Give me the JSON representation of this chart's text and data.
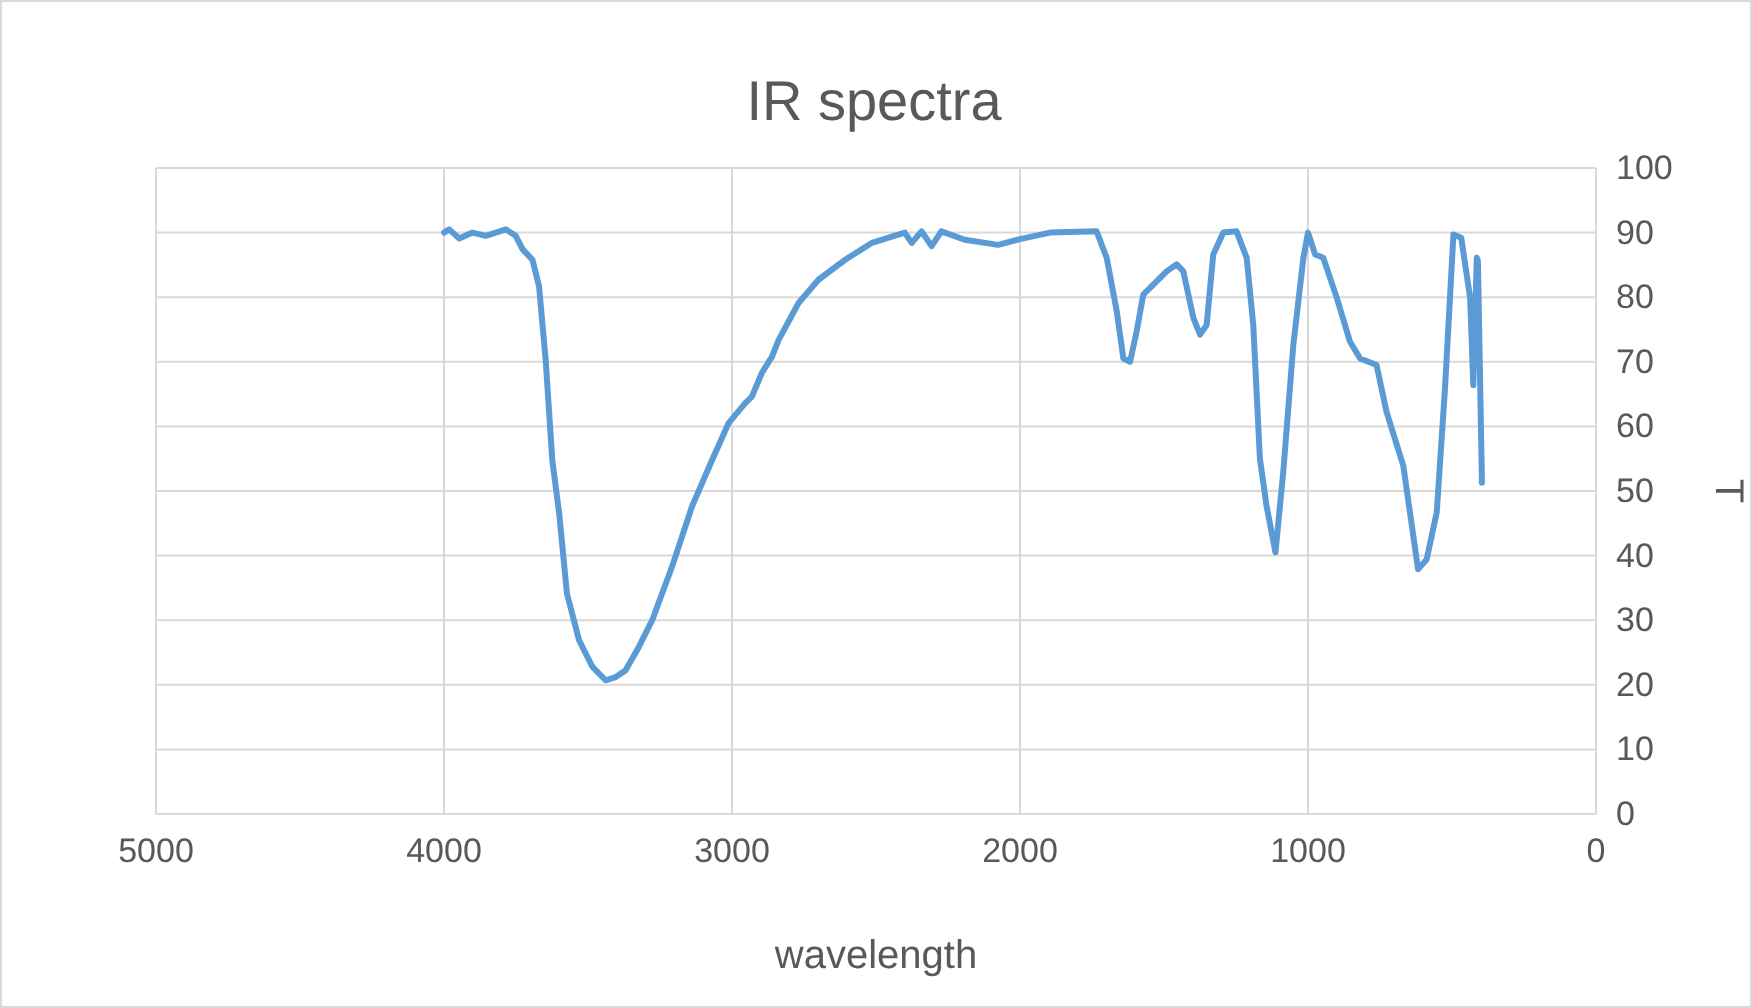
{
  "chart_data": {
    "type": "line",
    "title": "IR spectra",
    "xlabel": "wavelength",
    "ylabel": "T",
    "xlim": [
      5000,
      0
    ],
    "xticks": [
      5000,
      4000,
      3000,
      2000,
      1000,
      0
    ],
    "ylim": [
      0,
      100
    ],
    "yticks": [
      0,
      10,
      20,
      30,
      40,
      50,
      60,
      70,
      80,
      90,
      100
    ],
    "grid": true,
    "series": [
      {
        "color": "#5b9bd5",
        "x": [
          4000,
          3982,
          3947,
          3901,
          3855,
          3785,
          3751,
          3727,
          3693,
          3670,
          3647,
          3624,
          3600,
          3573,
          3531,
          3485,
          3439,
          3404,
          3370,
          3323,
          3277,
          3208,
          3139,
          3069,
          3012,
          2954,
          2931,
          2896,
          2861,
          2838,
          2769,
          2700,
          2607,
          2515,
          2400,
          2376,
          2342,
          2307,
          2273,
          2192,
          2076,
          2000,
          1896,
          1734,
          1699,
          1664,
          1641,
          1618,
          1595,
          1572,
          1525,
          1491,
          1456,
          1433,
          1398,
          1375,
          1352,
          1329,
          1294,
          1248,
          1213,
          1190,
          1167,
          1144,
          1113,
          1086,
          1051,
          1016,
          1000,
          975,
          947,
          900,
          854,
          819,
          762,
          727,
          669,
          618,
          588,
          553,
          525,
          495,
          468,
          437,
          426,
          414,
          410,
          396
        ],
        "values": [
          90,
          90.5,
          89.1,
          90,
          89.5,
          90.5,
          89.5,
          87.4,
          85.8,
          81.7,
          70.3,
          54.8,
          46.5,
          34.1,
          26.9,
          22.8,
          20.7,
          21.2,
          22.2,
          25.9,
          30,
          38.3,
          47.6,
          54.8,
          60.5,
          63.6,
          64.6,
          68.3,
          70.8,
          73.4,
          79.1,
          82.7,
          85.8,
          88.4,
          90,
          88.4,
          90.2,
          87.9,
          90.2,
          88.9,
          88.1,
          89,
          90,
          90.2,
          86.1,
          77.8,
          70.5,
          70,
          74.7,
          80.4,
          82.5,
          84,
          85.1,
          84,
          76.8,
          74.2,
          75.7,
          86.6,
          90,
          90.2,
          86.1,
          75.7,
          55,
          47.7,
          40.5,
          52.9,
          72.6,
          86.1,
          90,
          86.6,
          86.1,
          79.9,
          73.1,
          70.5,
          69.5,
          62.2,
          53.9,
          37.9,
          39.4,
          46.7,
          65.4,
          89.7,
          89.2,
          79.9,
          66.4,
          86.1,
          85.6,
          51.3
        ]
      }
    ]
  }
}
